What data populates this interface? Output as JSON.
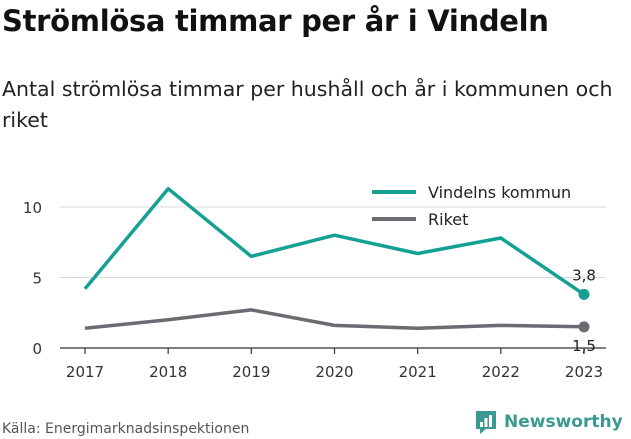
{
  "title": "Strömlösa timmar per år i Vindeln",
  "subtitle": "Antal strömlösa timmar per hushåll och år i kommunen och riket",
  "source": "Källa: Energimarknadsinspektionen",
  "brand": {
    "name": "Newsworthy",
    "icon": "newsworthy-logo-icon"
  },
  "colors": {
    "kommun": "#14a193",
    "riket": "#6b6b72",
    "grid": "#d8d8d8",
    "axis": "#333333"
  },
  "chart_data": {
    "type": "line",
    "x": [
      2017,
      2018,
      2019,
      2020,
      2021,
      2022,
      2023
    ],
    "series": [
      {
        "name": "Vindelns kommun",
        "values": [
          4.2,
          11.3,
          6.5,
          8.0,
          6.7,
          7.8,
          3.8
        ],
        "end_label": "3,8"
      },
      {
        "name": "Riket",
        "values": [
          1.4,
          2.0,
          2.7,
          1.6,
          1.4,
          1.6,
          1.5
        ],
        "end_label": "1,5"
      }
    ],
    "yticks": [
      0,
      5,
      10
    ],
    "ylim": [
      0,
      12
    ],
    "grid": true,
    "legend": "top-right"
  }
}
